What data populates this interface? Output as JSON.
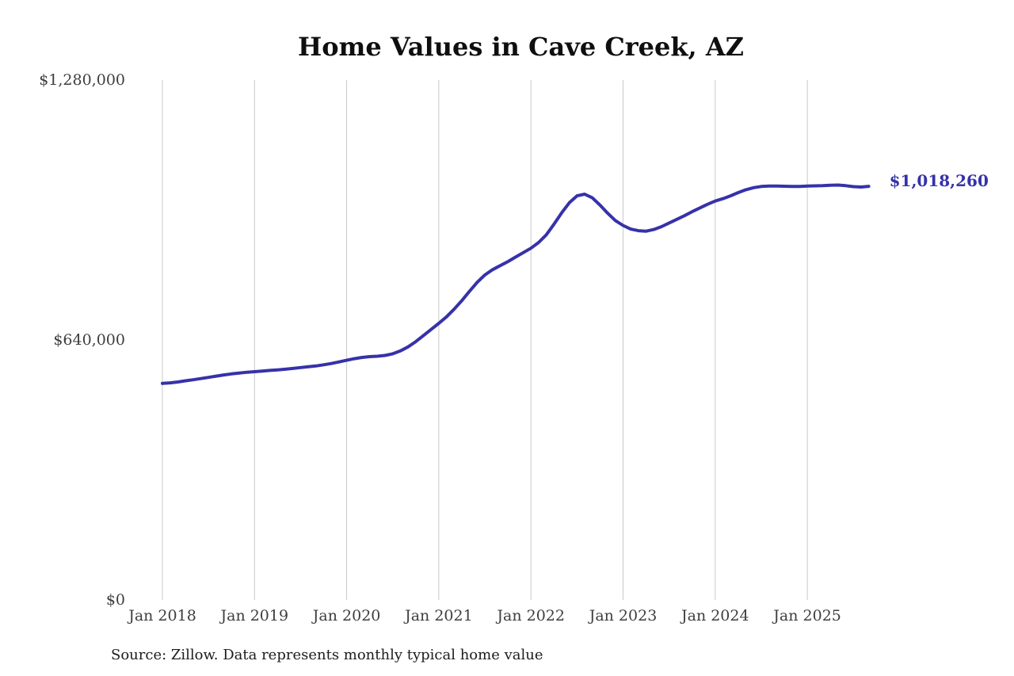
{
  "source_note": "Source: Zillow. Data represents monthly typical home value",
  "colors": {
    "line": "#3632a9",
    "value_label": "#3632a9",
    "grid": "#c9c9c9",
    "axis_text": "#3e3e3e",
    "title_text": "#0f0f0f",
    "background": "#ffffff"
  },
  "chart_data": {
    "type": "line",
    "title": "Home Values in Cave Creek, AZ",
    "xlabel": "",
    "ylabel": "",
    "ylim": [
      0,
      1280000
    ],
    "grid": "vertical-only",
    "legend_position": "none",
    "end_label": "$1,018,260",
    "end_value": 1018260,
    "yticks": [
      {
        "value": 0,
        "label": "$0"
      },
      {
        "value": 640000,
        "label": "$640,000"
      },
      {
        "value": 1280000,
        "label": "$1,280,000"
      }
    ],
    "xticks": [
      "Jan 2018",
      "Jan 2019",
      "Jan 2020",
      "Jan 2021",
      "Jan 2022",
      "Jan 2023",
      "Jan 2024",
      "Jan 2025"
    ],
    "series": [
      {
        "name": "Monthly typical home value",
        "color": "#3632a9",
        "x": [
          "2018-01",
          "2018-02",
          "2018-03",
          "2018-04",
          "2018-05",
          "2018-06",
          "2018-07",
          "2018-08",
          "2018-09",
          "2018-10",
          "2018-11",
          "2018-12",
          "2019-01",
          "2019-02",
          "2019-03",
          "2019-04",
          "2019-05",
          "2019-06",
          "2019-07",
          "2019-08",
          "2019-09",
          "2019-10",
          "2019-11",
          "2019-12",
          "2020-01",
          "2020-02",
          "2020-03",
          "2020-04",
          "2020-05",
          "2020-06",
          "2020-07",
          "2020-08",
          "2020-09",
          "2020-10",
          "2020-11",
          "2020-12",
          "2021-01",
          "2021-02",
          "2021-03",
          "2021-04",
          "2021-05",
          "2021-06",
          "2021-07",
          "2021-08",
          "2021-09",
          "2021-10",
          "2021-11",
          "2021-12",
          "2022-01",
          "2022-02",
          "2022-03",
          "2022-04",
          "2022-05",
          "2022-06",
          "2022-07",
          "2022-08",
          "2022-09",
          "2022-10",
          "2022-11",
          "2022-12",
          "2023-01",
          "2023-02",
          "2023-03",
          "2023-04",
          "2023-05",
          "2023-06",
          "2023-07",
          "2023-08",
          "2023-09",
          "2023-10",
          "2023-11",
          "2023-12",
          "2024-01",
          "2024-02",
          "2024-03",
          "2024-04",
          "2024-05",
          "2024-06",
          "2024-07",
          "2024-08",
          "2024-09",
          "2024-10",
          "2024-11",
          "2024-12",
          "2025-01",
          "2025-02",
          "2025-03",
          "2025-04",
          "2025-05",
          "2025-06",
          "2025-07",
          "2025-08",
          "2025-09"
        ],
        "values": [
          533000,
          534500,
          536500,
          539500,
          542000,
          545000,
          548000,
          551000,
          554000,
          556500,
          558500,
          560500,
          562000,
          563500,
          565000,
          566500,
          568000,
          570000,
          572000,
          574000,
          576000,
          579000,
          582000,
          586000,
          590000,
          594000,
          597000,
          599000,
          600000,
          602000,
          606000,
          613000,
          623000,
          636000,
          651000,
          666000,
          681000,
          697000,
          716000,
          737000,
          760000,
          782000,
          800000,
          813000,
          823000,
          833000,
          844000,
          855000,
          866000,
          880000,
          899000,
          925000,
          953000,
          978000,
          995000,
          999000,
          990000,
          972000,
          952000,
          934000,
          922000,
          913000,
          909000,
          908000,
          912000,
          919000,
          928000,
          937000,
          946000,
          956000,
          965000,
          974000,
          982000,
          988000,
          995000,
          1003000,
          1010000,
          1015000,
          1018000,
          1019000,
          1019000,
          1018500,
          1018000,
          1018000,
          1019000,
          1019500,
          1020000,
          1021000,
          1021500,
          1020000,
          1017500,
          1016500,
          1018260
        ]
      }
    ]
  }
}
